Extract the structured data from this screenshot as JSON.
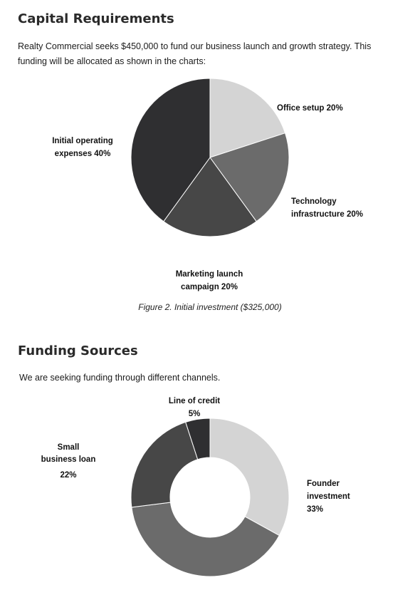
{
  "section1": {
    "title": "Capital Requirements",
    "intro": "Realty Commercial seeks $450,000 to fund our business launch and growth strategy. This funding will be allocated as shown in the charts:",
    "caption": "Figure 2. Initial investment ($325,000)"
  },
  "section2": {
    "title": "Funding Sources",
    "intro": "We are seeking funding through different channels."
  },
  "chart_data": [
    {
      "type": "pie",
      "slices": [
        {
          "label_lines": [
            "Office setup 20%"
          ],
          "value": 20,
          "color": "#d4d4d4"
        },
        {
          "label_lines": [
            "Technology",
            "infrastructure 20%"
          ],
          "value": 20,
          "color": "#6b6b6b"
        },
        {
          "label_lines": [
            "Marketing launch",
            "campaign 20%"
          ],
          "value": 20,
          "color": "#474747"
        },
        {
          "label_lines": [
            "Initial operating",
            "expenses 40%"
          ],
          "value": 40,
          "color": "#2f2f31"
        }
      ]
    },
    {
      "type": "pie",
      "donut": true,
      "slices": [
        {
          "label_lines": [
            "Founder",
            "investment",
            "33%"
          ],
          "value": 33,
          "color": "#d4d4d4"
        },
        {
          "label_lines": [],
          "value": 40,
          "color": "#6b6b6b"
        },
        {
          "label_lines": [
            "Small",
            "business loan",
            "22%"
          ],
          "value": 22,
          "color": "#474747"
        },
        {
          "label_lines": [
            "Line of credit",
            "5%"
          ],
          "value": 5,
          "color": "#2f2f31"
        }
      ]
    }
  ]
}
